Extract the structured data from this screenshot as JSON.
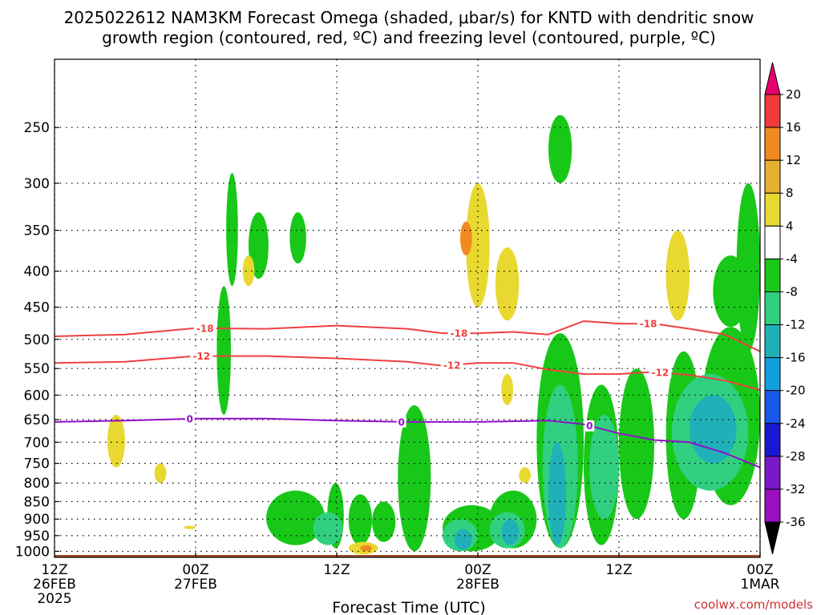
{
  "title_line1": "2025022612 NAM3KM Forecast Omega (shaded, μbar/s) for KNTD with dendritic snow",
  "title_line2": "growth region (contoured, red, ºC) and freezing level (contoured, purple, ºC)",
  "credit": "coolwx.com/models",
  "chart_data": {
    "type": "heatmap",
    "xlabel": "Forecast Time (UTC)",
    "x_ticks": [
      {
        "hour": 0,
        "label1": "12Z",
        "label2": "26FEB",
        "label3": "2025"
      },
      {
        "hour": 12,
        "label1": "00Z",
        "label2": "27FEB",
        "label3": ""
      },
      {
        "hour": 24,
        "label1": "12Z",
        "label2": "",
        "label3": ""
      },
      {
        "hour": 36,
        "label1": "00Z",
        "label2": "28FEB",
        "label3": ""
      },
      {
        "hour": 48,
        "label1": "12Z",
        "label2": "",
        "label3": ""
      },
      {
        "hour": 60,
        "label1": "00Z",
        "label2": "1MAR",
        "label3": ""
      }
    ],
    "xlim_hours": [
      0,
      60
    ],
    "y_ticks_hpa": [
      250,
      300,
      350,
      400,
      450,
      500,
      550,
      600,
      650,
      700,
      750,
      800,
      850,
      900,
      950,
      1000
    ],
    "ylim_hpa": [
      200,
      1020
    ],
    "y_scale": "log-pressure",
    "grid": true,
    "surface_pressure_hpa": 1012,
    "colorbar": {
      "ticks": [
        20,
        16,
        12,
        8,
        4,
        -4,
        -8,
        -12,
        -16,
        -20,
        -24,
        -28,
        -32,
        -36
      ],
      "colors": [
        "#e8006e",
        "#f03a3a",
        "#f08a20",
        "#e8b030",
        "#e8d830",
        "#ffffff",
        "#18c818",
        "#30d080",
        "#20b0b8",
        "#10a0e0",
        "#1858e8",
        "#1818d0",
        "#7818c8",
        "#9a10c0",
        "#a8a8a8",
        "#000000"
      ]
    },
    "shaded_regions": [
      {
        "color": "#18c818",
        "t0": 14.6,
        "t1": 15.6,
        "p0": 290,
        "p1": 420
      },
      {
        "color": "#18c818",
        "t0": 13.8,
        "t1": 15.0,
        "p0": 420,
        "p1": 640
      },
      {
        "color": "#18c818",
        "t0": 16.5,
        "t1": 18.2,
        "p0": 330,
        "p1": 410
      },
      {
        "color": "#18c818",
        "t0": 20.0,
        "t1": 21.4,
        "p0": 330,
        "p1": 390
      },
      {
        "color": "#18c818",
        "t0": 23.2,
        "t1": 24.6,
        "p0": 800,
        "p1": 990
      },
      {
        "color": "#18c818",
        "t0": 18.0,
        "t1": 23.0,
        "p0": 820,
        "p1": 980
      },
      {
        "color": "#18c818",
        "t0": 25.0,
        "t1": 27.0,
        "p0": 830,
        "p1": 980
      },
      {
        "color": "#18c818",
        "t0": 27.0,
        "t1": 29.0,
        "p0": 850,
        "p1": 970
      },
      {
        "color": "#18c818",
        "t0": 29.2,
        "t1": 32.0,
        "p0": 620,
        "p1": 1000
      },
      {
        "color": "#18c818",
        "t0": 33.0,
        "t1": 38.0,
        "p0": 860,
        "p1": 1000
      },
      {
        "color": "#18c818",
        "t0": 37.0,
        "t1": 41.0,
        "p0": 820,
        "p1": 990
      },
      {
        "color": "#18c818",
        "t0": 42.0,
        "t1": 44.0,
        "p0": 240,
        "p1": 300
      },
      {
        "color": "#18c818",
        "t0": 41.0,
        "t1": 45.0,
        "p0": 490,
        "p1": 990
      },
      {
        "color": "#18c818",
        "t0": 45.0,
        "t1": 48.0,
        "p0": 580,
        "p1": 980
      },
      {
        "color": "#18c818",
        "t0": 48.0,
        "t1": 51.0,
        "p0": 550,
        "p1": 900
      },
      {
        "color": "#18c818",
        "t0": 52.0,
        "t1": 55.0,
        "p0": 520,
        "p1": 900
      },
      {
        "color": "#18c818",
        "t0": 55.0,
        "t1": 60.0,
        "p0": 480,
        "p1": 860
      },
      {
        "color": "#18c818",
        "t0": 58.0,
        "t1": 60.0,
        "p0": 300,
        "p1": 520
      },
      {
        "color": "#18c818",
        "t0": 56.0,
        "t1": 59.0,
        "p0": 380,
        "p1": 480
      },
      {
        "color": "#30d080",
        "t0": 22.0,
        "t1": 24.5,
        "p0": 880,
        "p1": 980
      },
      {
        "color": "#30d080",
        "t0": 33.0,
        "t1": 36.0,
        "p0": 900,
        "p1": 1000
      },
      {
        "color": "#30d080",
        "t0": 37.0,
        "t1": 40.0,
        "p0": 880,
        "p1": 990
      },
      {
        "color": "#30d080",
        "t0": 41.5,
        "t1": 44.5,
        "p0": 580,
        "p1": 990
      },
      {
        "color": "#30d080",
        "t0": 45.5,
        "t1": 48.0,
        "p0": 640,
        "p1": 900
      },
      {
        "color": "#30d080",
        "t0": 52.5,
        "t1": 59.0,
        "p0": 560,
        "p1": 820
      },
      {
        "color": "#20b0b8",
        "t0": 34.0,
        "t1": 35.5,
        "p0": 930,
        "p1": 995
      },
      {
        "color": "#20b0b8",
        "t0": 38.0,
        "t1": 39.5,
        "p0": 900,
        "p1": 980
      },
      {
        "color": "#20b0b8",
        "t0": 42.0,
        "t1": 43.5,
        "p0": 700,
        "p1": 980
      },
      {
        "color": "#20b0b8",
        "t0": 54.0,
        "t1": 58.0,
        "p0": 600,
        "p1": 750
      },
      {
        "color": "#e8d830",
        "t0": 4.5,
        "t1": 6.0,
        "p0": 640,
        "p1": 760
      },
      {
        "color": "#e8d830",
        "t0": 8.5,
        "t1": 9.5,
        "p0": 750,
        "p1": 800
      },
      {
        "color": "#e8d830",
        "t0": 11.0,
        "t1": 12.0,
        "p0": 920,
        "p1": 930
      },
      {
        "color": "#e8d830",
        "t0": 16.0,
        "t1": 17.0,
        "p0": 380,
        "p1": 420
      },
      {
        "color": "#e8d830",
        "t0": 25.0,
        "t1": 27.5,
        "p0": 970,
        "p1": 1010
      },
      {
        "color": "#e8d830",
        "t0": 35.0,
        "t1": 37.0,
        "p0": 300,
        "p1": 450
      },
      {
        "color": "#e8d830",
        "t0": 37.5,
        "t1": 39.5,
        "p0": 370,
        "p1": 470
      },
      {
        "color": "#e8d830",
        "t0": 38.0,
        "t1": 39.0,
        "p0": 560,
        "p1": 620
      },
      {
        "color": "#e8d830",
        "t0": 39.5,
        "t1": 40.5,
        "p0": 760,
        "p1": 800
      },
      {
        "color": "#e8d830",
        "t0": 52.0,
        "t1": 54.0,
        "p0": 350,
        "p1": 470
      },
      {
        "color": "#f08a20",
        "t0": 26.0,
        "t1": 27.0,
        "p0": 980,
        "p1": 1000
      },
      {
        "color": "#f08a20",
        "t0": 34.5,
        "t1": 35.5,
        "p0": 340,
        "p1": 380
      }
    ],
    "contours": [
      {
        "label": "-18",
        "color": "#f04040",
        "points": [
          [
            0,
            495
          ],
          [
            6,
            492
          ],
          [
            12,
            482
          ],
          [
            18,
            483
          ],
          [
            24,
            478
          ],
          [
            30,
            483
          ],
          [
            33,
            490
          ],
          [
            36,
            490
          ],
          [
            39,
            488
          ],
          [
            42,
            492
          ],
          [
            45,
            471
          ],
          [
            48,
            475
          ],
          [
            51,
            475
          ],
          [
            54,
            483
          ],
          [
            57,
            492
          ],
          [
            60,
            520
          ]
        ],
        "label_hours": [
          12.8,
          34.4,
          50.5
        ]
      },
      {
        "label": "-12",
        "color": "#f04040",
        "points": [
          [
            0,
            540
          ],
          [
            6,
            538
          ],
          [
            12,
            528
          ],
          [
            18,
            528
          ],
          [
            24,
            532
          ],
          [
            30,
            538
          ],
          [
            33,
            545
          ],
          [
            36,
            540
          ],
          [
            39,
            540
          ],
          [
            42,
            552
          ],
          [
            45,
            560
          ],
          [
            48,
            560
          ],
          [
            51,
            556
          ],
          [
            54,
            562
          ],
          [
            57,
            572
          ],
          [
            60,
            590
          ]
        ],
        "label_hours": [
          12.5,
          33.8,
          51.5
        ]
      },
      {
        "label": "0",
        "color": "#9010c8",
        "points": [
          [
            0,
            655
          ],
          [
            6,
            652
          ],
          [
            12,
            648
          ],
          [
            18,
            648
          ],
          [
            24,
            652
          ],
          [
            30,
            655
          ],
          [
            36,
            655
          ],
          [
            42,
            652
          ],
          [
            45,
            660
          ],
          [
            48,
            680
          ],
          [
            51,
            695
          ],
          [
            54,
            700
          ],
          [
            57,
            725
          ],
          [
            60,
            760
          ]
        ],
        "label_hours": [
          11.5,
          29.5,
          45.5
        ]
      }
    ]
  }
}
